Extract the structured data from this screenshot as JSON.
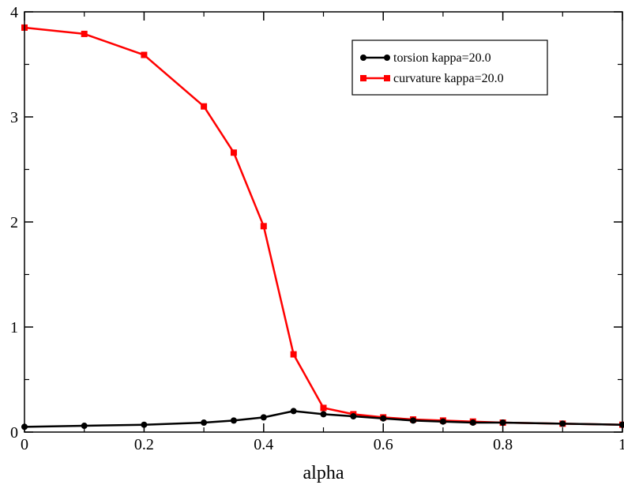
{
  "chart_data": {
    "type": "line",
    "title": "",
    "xlabel": "alpha",
    "ylabel": "",
    "xlim": [
      0,
      1
    ],
    "ylim": [
      0,
      4
    ],
    "x_ticks": [
      {
        "value": 0,
        "label": "0"
      },
      {
        "value": 0.2,
        "label": "0.2"
      },
      {
        "value": 0.4,
        "label": "0.4"
      },
      {
        "value": 0.6,
        "label": "0.6"
      },
      {
        "value": 0.8,
        "label": "0.8"
      },
      {
        "value": 1,
        "label": "1"
      }
    ],
    "y_ticks": [
      {
        "value": 0,
        "label": "0"
      },
      {
        "value": 1,
        "label": "1"
      },
      {
        "value": 2,
        "label": "2"
      },
      {
        "value": 3,
        "label": "3"
      },
      {
        "value": 4,
        "label": "4"
      }
    ],
    "x_minor_step": 0.1,
    "y_minor_step": 0.5,
    "grid": false,
    "legend_position": "top-right",
    "series": [
      {
        "name": "torsion kappa=20.0",
        "color": "#000000",
        "marker": "circle",
        "x": [
          0,
          0.1,
          0.2,
          0.3,
          0.35,
          0.4,
          0.45,
          0.5,
          0.55,
          0.6,
          0.65,
          0.7,
          0.75,
          0.8,
          0.9,
          1.0
        ],
        "y": [
          0.05,
          0.06,
          0.07,
          0.09,
          0.11,
          0.14,
          0.2,
          0.17,
          0.15,
          0.13,
          0.11,
          0.1,
          0.09,
          0.09,
          0.08,
          0.07
        ]
      },
      {
        "name": "curvature kappa=20.0",
        "color": "#ff0000",
        "marker": "square",
        "x": [
          0,
          0.1,
          0.2,
          0.3,
          0.35,
          0.4,
          0.45,
          0.5,
          0.55,
          0.6,
          0.65,
          0.7,
          0.75,
          0.8,
          0.9,
          1.0
        ],
        "y": [
          3.85,
          3.79,
          3.59,
          3.1,
          2.66,
          1.96,
          0.74,
          0.23,
          0.17,
          0.14,
          0.12,
          0.11,
          0.1,
          0.09,
          0.08,
          0.07
        ]
      }
    ]
  }
}
